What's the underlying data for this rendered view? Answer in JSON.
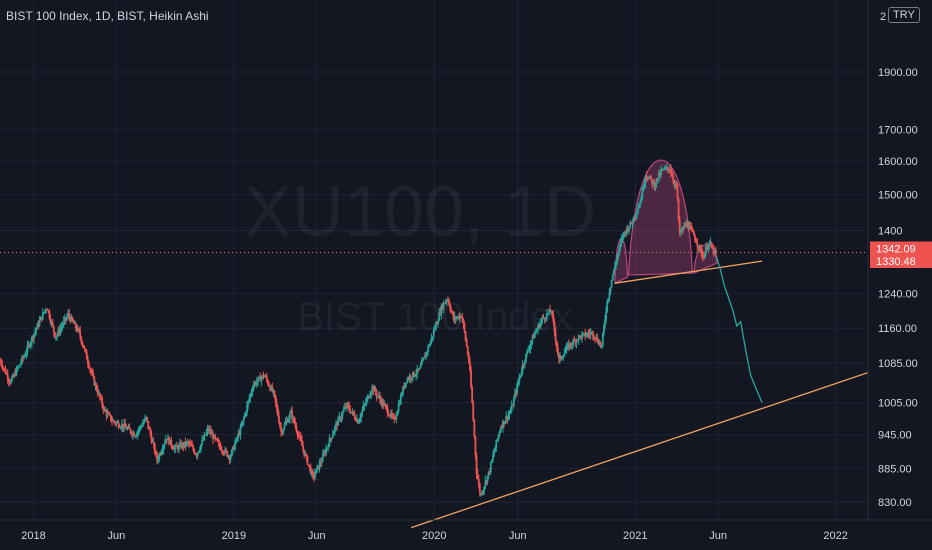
{
  "header": {
    "title": "BIST 100 Index, 1D, BIST, Heikin Ashi"
  },
  "currency_badge": "TRY",
  "top_price_partial": "2",
  "watermark": {
    "symbol": "XU100, 1D",
    "name": "BIST 100 Index"
  },
  "colors": {
    "up": "#26a69a",
    "down": "#ef5350",
    "trendline": "#f0a35e",
    "pattern": "#b8467e",
    "price_line": "#f57c4f"
  },
  "chart_data": {
    "type": "candlestick",
    "style": "Heikin Ashi",
    "log_scale": true,
    "grid": true,
    "y_ticks": [
      830,
      885,
      945,
      1005,
      1085,
      1160,
      1240,
      1330.48,
      1342.09,
      1400,
      1500,
      1600,
      1700,
      1900
    ],
    "y_tick_labels": [
      "830.00",
      "885.00",
      "945.00",
      "1005.00",
      "1085.00",
      "1160.00",
      "1240.00",
      "1400",
      "1500.00",
      "1600.00",
      "1700.00",
      "1900.00"
    ],
    "x_ticks": [
      {
        "label": "2018",
        "date": "2018-01-01"
      },
      {
        "label": "Jun",
        "date": "2018-06-01"
      },
      {
        "label": "2019",
        "date": "2019-01-01"
      },
      {
        "label": "Jun",
        "date": "2019-06-01"
      },
      {
        "label": "2020",
        "date": "2020-01-01"
      },
      {
        "label": "Jun",
        "date": "2020-06-01"
      },
      {
        "label": "2021",
        "date": "2021-01-01"
      },
      {
        "label": "Jun",
        "date": "2021-06-01"
      },
      {
        "label": "2022",
        "date": "2022-01-01"
      }
    ],
    "x_range": [
      "2017-11-01",
      "2022-03-01"
    ],
    "y_range": [
      800,
      2100
    ],
    "last_price": 1330.48,
    "price_line": 1342.09,
    "price_labels": [
      "1342.09",
      "1330.48"
    ],
    "price_path": [
      [
        "2017-11-01",
        1090
      ],
      [
        "2017-11-20",
        1045
      ],
      [
        "2017-12-15",
        1100
      ],
      [
        "2018-01-10",
        1170
      ],
      [
        "2018-01-25",
        1210
      ],
      [
        "2018-02-10",
        1140
      ],
      [
        "2018-03-05",
        1190
      ],
      [
        "2018-03-25",
        1150
      ],
      [
        "2018-04-20",
        1050
      ],
      [
        "2018-05-10",
        990
      ],
      [
        "2018-05-25",
        970
      ],
      [
        "2018-06-15",
        960
      ],
      [
        "2018-07-05",
        945
      ],
      [
        "2018-07-25",
        975
      ],
      [
        "2018-08-14",
        900
      ],
      [
        "2018-08-31",
        940
      ],
      [
        "2018-09-15",
        920
      ],
      [
        "2018-10-10",
        930
      ],
      [
        "2018-10-25",
        910
      ],
      [
        "2018-11-15",
        955
      ],
      [
        "2018-12-05",
        925
      ],
      [
        "2018-12-25",
        905
      ],
      [
        "2019-01-15",
        960
      ],
      [
        "2019-02-05",
        1040
      ],
      [
        "2019-02-25",
        1060
      ],
      [
        "2019-03-15",
        1020
      ],
      [
        "2019-03-28",
        950
      ],
      [
        "2019-04-15",
        985
      ],
      [
        "2019-05-10",
        910
      ],
      [
        "2019-05-25",
        870
      ],
      [
        "2019-06-10",
        900
      ],
      [
        "2019-07-05",
        960
      ],
      [
        "2019-07-25",
        1000
      ],
      [
        "2019-08-15",
        970
      ],
      [
        "2019-09-10",
        1035
      ],
      [
        "2019-10-01",
        1000
      ],
      [
        "2019-10-20",
        970
      ],
      [
        "2019-11-10",
        1050
      ],
      [
        "2019-12-05",
        1070
      ],
      [
        "2019-12-25",
        1130
      ],
      [
        "2020-01-15",
        1210
      ],
      [
        "2020-01-25",
        1230
      ],
      [
        "2020-02-05",
        1180
      ],
      [
        "2020-02-20",
        1190
      ],
      [
        "2020-03-05",
        1080
      ],
      [
        "2020-03-18",
        880
      ],
      [
        "2020-03-25",
        840
      ],
      [
        "2020-04-10",
        880
      ],
      [
        "2020-05-01",
        960
      ],
      [
        "2020-05-20",
        990
      ],
      [
        "2020-06-10",
        1080
      ],
      [
        "2020-06-25",
        1130
      ],
      [
        "2020-07-15",
        1180
      ],
      [
        "2020-08-01",
        1200
      ],
      [
        "2020-08-15",
        1090
      ],
      [
        "2020-09-01",
        1120
      ],
      [
        "2020-09-20",
        1140
      ],
      [
        "2020-10-15",
        1150
      ],
      [
        "2020-11-01",
        1120
      ],
      [
        "2020-11-10",
        1215
      ],
      [
        "2020-11-20",
        1280
      ],
      [
        "2020-12-10",
        1390
      ],
      [
        "2020-12-25",
        1420
      ],
      [
        "2021-01-10",
        1480
      ],
      [
        "2021-01-20",
        1560
      ],
      [
        "2021-02-05",
        1530
      ],
      [
        "2021-02-18",
        1570
      ],
      [
        "2021-03-05",
        1580
      ],
      [
        "2021-03-12",
        1540
      ],
      [
        "2021-03-18",
        1520
      ],
      [
        "2021-03-22",
        1390
      ],
      [
        "2021-04-05",
        1420
      ],
      [
        "2021-04-20",
        1380
      ],
      [
        "2021-05-05",
        1330
      ],
      [
        "2021-05-15",
        1370
      ],
      [
        "2021-05-28",
        1335
      ]
    ],
    "projection_path": [
      [
        "2021-05-28",
        1335
      ],
      [
        "2021-06-05",
        1300
      ],
      [
        "2021-06-12",
        1260
      ],
      [
        "2021-06-20",
        1230
      ],
      [
        "2021-06-28",
        1200
      ],
      [
        "2021-07-05",
        1165
      ],
      [
        "2021-07-12",
        1175
      ],
      [
        "2021-07-20",
        1120
      ],
      [
        "2021-07-30",
        1060
      ],
      [
        "2021-08-10",
        1030
      ],
      [
        "2021-08-20",
        1005
      ]
    ],
    "neckline": [
      [
        "2020-11-25",
        1265
      ],
      [
        "2021-08-20",
        1320
      ]
    ],
    "support_line": [
      [
        "2019-11-20",
        790
      ],
      [
        "2022-03-01",
        1065
      ]
    ],
    "pattern_arcs": [
      {
        "start": [
          "2020-11-25",
          1265
        ],
        "peak": [
          "2020-12-05",
          1380
        ],
        "end": [
          "2020-12-18",
          1280
        ]
      },
      {
        "start": [
          "2020-12-20",
          1285
        ],
        "peak": [
          "2021-02-20",
          1600
        ],
        "end": [
          "2021-04-15",
          1290
        ]
      },
      {
        "start": [
          "2021-04-18",
          1290
        ],
        "peak": [
          "2021-05-05",
          1365
        ],
        "end": [
          "2021-05-30",
          1315
        ]
      }
    ]
  }
}
